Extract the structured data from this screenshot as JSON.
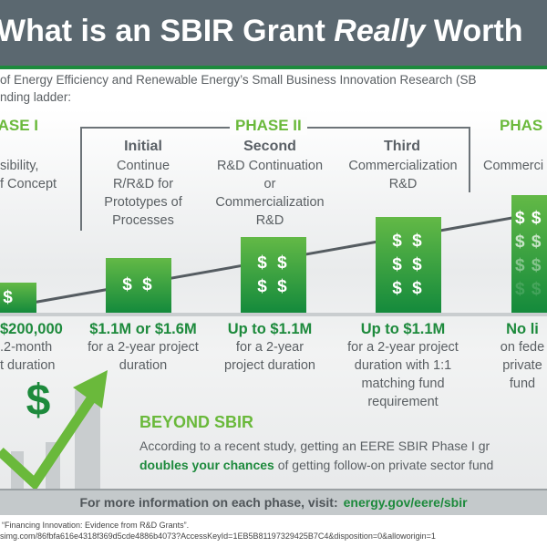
{
  "header": {
    "title_pre": "What is an SBIR Grant ",
    "title_italic": "Really",
    "title_post": " Worth"
  },
  "intro": {
    "line1": "of Energy Efficiency and Renewable Energy’s Small Business Innovation Research (SB",
    "line2": "nding ladder:"
  },
  "phases": {
    "phase1": "PHASE I",
    "phase2": "PHASE II",
    "phase3": "PHAS"
  },
  "columns": [
    {
      "sub": "",
      "desc": [
        "sibility,",
        "f Concept"
      ],
      "amount": "$200,000",
      "amount_desc": [
        ".2-month",
        "t duration"
      ],
      "dollars": [
        "$"
      ]
    },
    {
      "sub": "Initial",
      "desc": [
        "Continue",
        "R/R&D for",
        "Prototypes of",
        "Processes"
      ],
      "amount": "$1.1M or $1.6M",
      "amount_desc": [
        "for a 2-year project",
        "duration"
      ],
      "dollars": [
        "$ $"
      ]
    },
    {
      "sub": "Second",
      "desc": [
        "R&D Continuation",
        "or",
        "Commercialization",
        "R&D"
      ],
      "amount": "Up to $1.1M",
      "amount_desc": [
        "for a 2-year",
        "project duration"
      ],
      "dollars": [
        "$ $",
        "$ $"
      ]
    },
    {
      "sub": "Third",
      "desc": [
        "Commercialization",
        "R&D"
      ],
      "amount": "Up to $1.1M",
      "amount_desc": [
        "for a 2-year project",
        "duration with 1:1",
        "matching fund",
        "requirement"
      ],
      "dollars": [
        "$ $",
        "$ $",
        "$ $"
      ]
    },
    {
      "sub": "",
      "desc": [
        "Commerci"
      ],
      "amount": "No li",
      "amount_desc": [
        "on fede",
        "private",
        "fund"
      ],
      "dollars": [
        "$ $",
        "$ $",
        "$ $",
        "$ $"
      ]
    }
  ],
  "beyond": {
    "title": "BEYOND SBIR",
    "line1": "According to a recent study, getting an EERE SBIR Phase I gr",
    "bold": "doubles your chances",
    "line2_rest": " of getting follow-on private sector fund"
  },
  "footer": {
    "text": "For more information on each phase, visit:",
    "link": "energy.gov/eere/sbir"
  },
  "notes": {
    "line1": "“Financing Innovation: Evidence from R&D Grants”.",
    "line2": "simg.com/86fbfa616e4318f369d5cde4886b4073?AccessKeyId=1EB5B81197329425B7C4&disposition=0&alloworigin=1"
  },
  "colors": {
    "header": "#5b6870",
    "green_dark": "#1d8a3c",
    "green_light": "#6ab93b"
  }
}
